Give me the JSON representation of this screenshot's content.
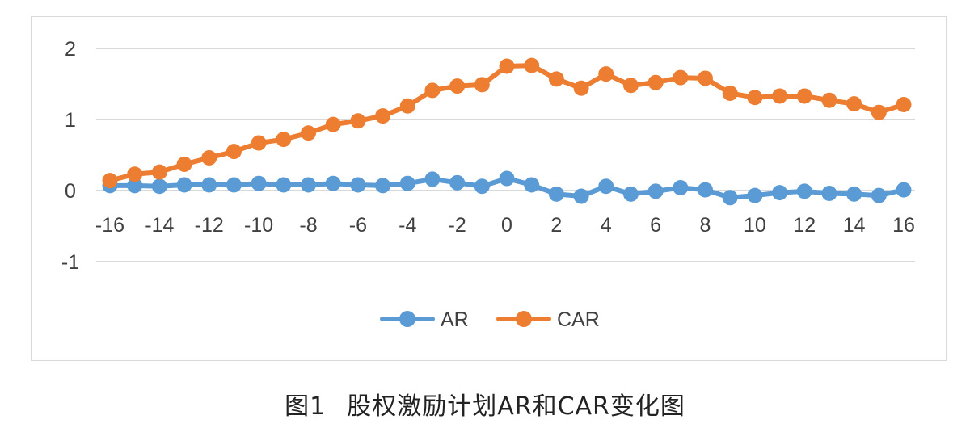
{
  "caption": {
    "number": "图1",
    "title": "股权激励计划AR和CAR变化图"
  },
  "chart_data": {
    "type": "line",
    "x": [
      -16,
      -15,
      -14,
      -13,
      -12,
      -11,
      -10,
      -9,
      -8,
      -7,
      -6,
      -5,
      -4,
      -3,
      -2,
      -1,
      0,
      1,
      2,
      3,
      4,
      5,
      6,
      7,
      8,
      9,
      10,
      11,
      12,
      13,
      14,
      15,
      16
    ],
    "x_tick_labels": [
      "-16",
      "-14",
      "-12",
      "-10",
      "-8",
      "-6",
      "-4",
      "-2",
      "0",
      "2",
      "4",
      "6",
      "8",
      "10",
      "12",
      "14",
      "16"
    ],
    "y_tick_labels": [
      "2",
      "1",
      "0",
      "-1"
    ],
    "ylim": [
      -1,
      2
    ],
    "grid": true,
    "legend_position": "bottom",
    "series": [
      {
        "name": "AR",
        "color": "#5b9bd5",
        "values": [
          0.07,
          0.07,
          0.06,
          0.08,
          0.08,
          0.08,
          0.1,
          0.08,
          0.08,
          0.1,
          0.08,
          0.07,
          0.1,
          0.16,
          0.11,
          0.06,
          0.17,
          0.08,
          -0.05,
          -0.08,
          0.06,
          -0.05,
          -0.01,
          0.04,
          0.01,
          -0.1,
          -0.07,
          -0.03,
          -0.01,
          -0.04,
          -0.05,
          -0.07,
          0.01
        ]
      },
      {
        "name": "CAR",
        "color": "#ed7d31",
        "values": [
          0.14,
          0.23,
          0.26,
          0.37,
          0.46,
          0.55,
          0.67,
          0.72,
          0.81,
          0.93,
          0.98,
          1.05,
          1.19,
          1.41,
          1.47,
          1.49,
          1.75,
          1.76,
          1.57,
          1.44,
          1.64,
          1.48,
          1.52,
          1.59,
          1.58,
          1.37,
          1.31,
          1.33,
          1.33,
          1.27,
          1.22,
          1.1,
          1.21
        ]
      }
    ]
  }
}
